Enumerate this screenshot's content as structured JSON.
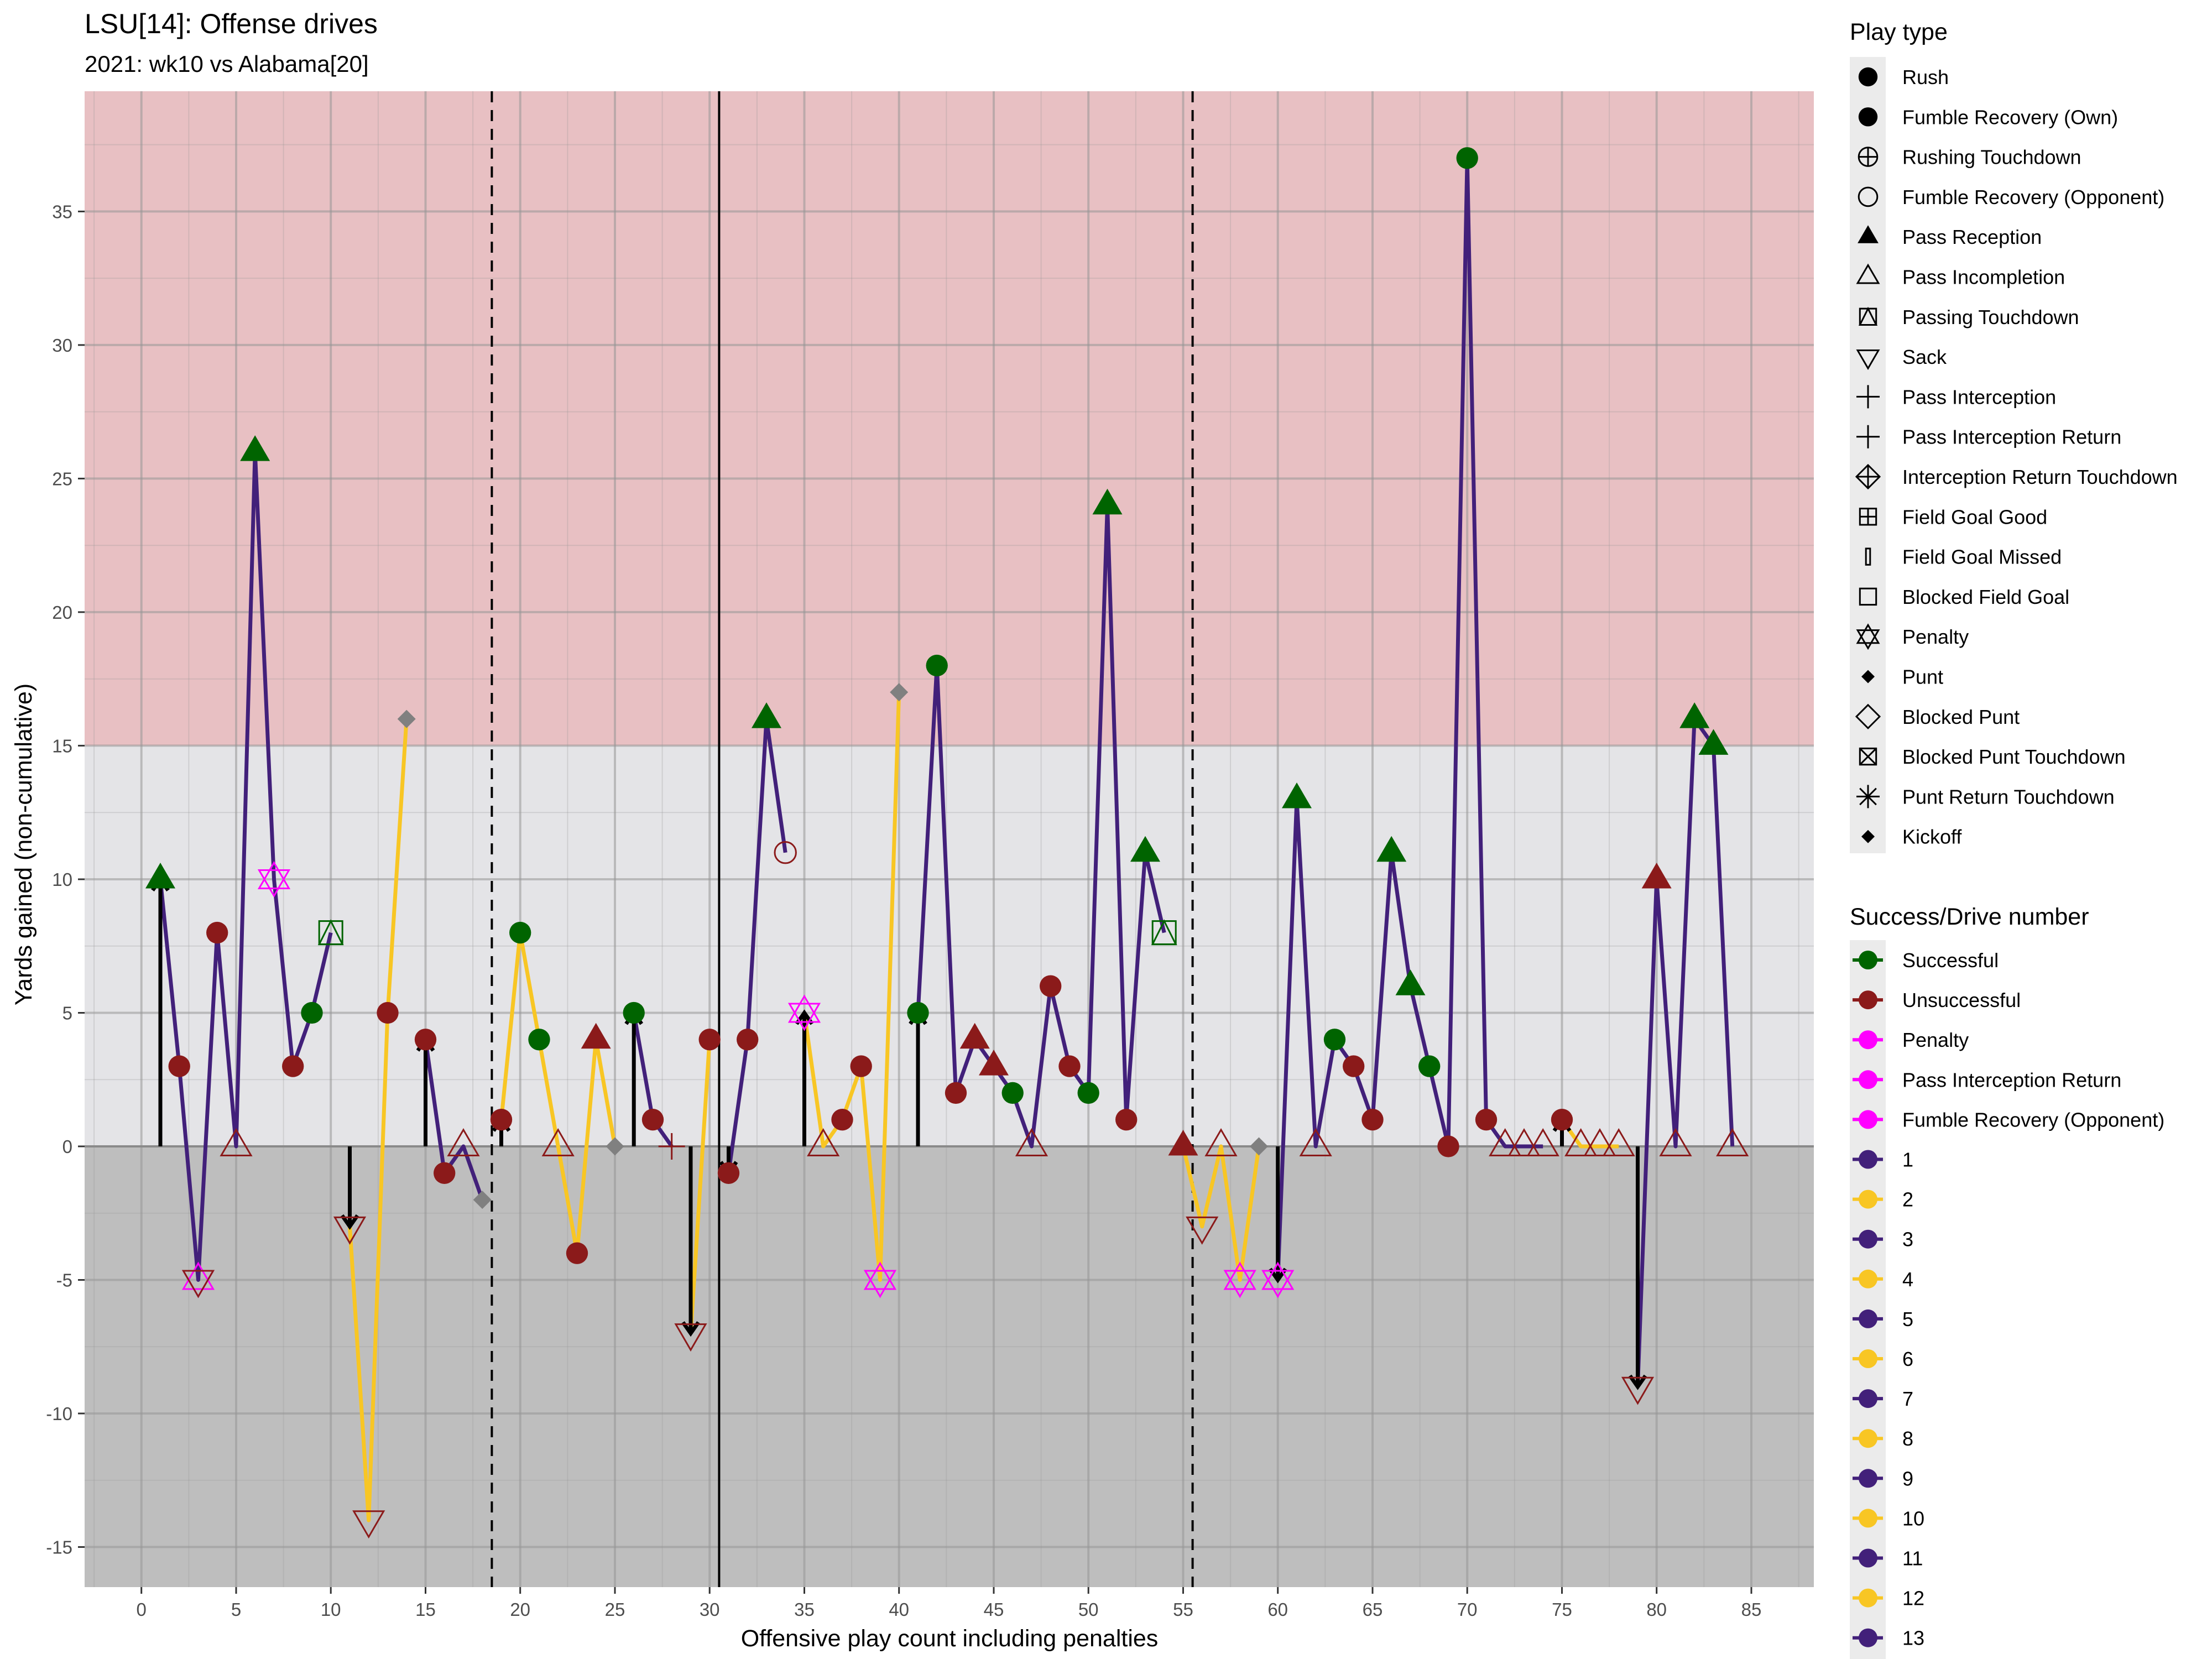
{
  "chart_data": {
    "type": "line",
    "title": "LSU[14]: Offense drives",
    "subtitle": "2021: wk10 vs Alabama[20]",
    "xlabel": "Offensive play count including penalties",
    "ylabel": "Yards gained (non-cumulative)",
    "xlim": [
      -3,
      88.3
    ],
    "ylim": [
      -16.5,
      39.5
    ],
    "x_ticks": [
      0,
      5,
      10,
      15,
      20,
      25,
      30,
      35,
      40,
      45,
      50,
      55,
      60,
      65,
      70,
      75,
      80,
      85
    ],
    "y_ticks": [
      -15,
      -10,
      -5,
      0,
      5,
      10,
      15,
      20,
      25,
      30,
      35
    ],
    "grid": true,
    "legend_position": "right",
    "background_bands": [
      {
        "from": 15,
        "to": 39.5,
        "color": "#e8c0c3"
      },
      {
        "from": 0,
        "to": 15,
        "color": "#e4e4e7"
      },
      {
        "from": -16.5,
        "to": 0,
        "color": "#bebebe"
      }
    ],
    "vlines": [
      {
        "x": 18.5,
        "style": "dashed"
      },
      {
        "x": 30.5,
        "style": "solid"
      },
      {
        "x": 55.5,
        "style": "dashed"
      }
    ],
    "zero_line": 0,
    "colors": {
      "successful": "#006400",
      "unsuccessful": "#8b1a1a",
      "penalty": "#ff00ff",
      "odd_drive": "#42207a",
      "even_drive": "#f8c624",
      "neutral": "#808080"
    },
    "drives": [
      {
        "drive": 1,
        "x": [
          1,
          2,
          3,
          4,
          5,
          6,
          7,
          8,
          9,
          10
        ],
        "y": [
          10,
          3,
          -5,
          8,
          0,
          26,
          10,
          3,
          5,
          8
        ]
      },
      {
        "drive": 2,
        "x": [
          11,
          12,
          13,
          14
        ],
        "y": [
          -3,
          -14,
          5,
          16
        ]
      },
      {
        "drive": 3,
        "x": [
          15,
          16,
          17,
          18
        ],
        "y": [
          4,
          -1,
          0,
          -2
        ]
      },
      {
        "drive": 4,
        "x": [
          19,
          20,
          21,
          22,
          23,
          24,
          25
        ],
        "y": [
          1,
          8,
          4,
          0,
          -4,
          4,
          0
        ]
      },
      {
        "drive": 5,
        "x": [
          26,
          27,
          28
        ],
        "y": [
          5,
          1,
          0
        ]
      },
      {
        "drive": 6,
        "x": [
          29,
          30
        ],
        "y": [
          -7,
          4
        ]
      },
      {
        "drive": 7,
        "x": [
          31,
          32,
          33,
          34
        ],
        "y": [
          -1,
          4,
          16,
          11
        ]
      },
      {
        "drive": 8,
        "x": [
          35,
          36,
          37,
          38,
          39,
          40
        ],
        "y": [
          5,
          0,
          1,
          3,
          -5,
          17
        ]
      },
      {
        "drive": 9,
        "x": [
          41,
          42,
          43,
          44,
          45,
          46,
          47,
          48,
          49,
          50,
          51,
          52,
          53,
          54
        ],
        "y": [
          5,
          18,
          2,
          4,
          3,
          2,
          0,
          6,
          3,
          2,
          24,
          1,
          11,
          8
        ]
      },
      {
        "drive": 10,
        "x": [
          55,
          56,
          57,
          58,
          59
        ],
        "y": [
          0,
          -3,
          0,
          -5,
          0
        ]
      },
      {
        "drive": 11,
        "x": [
          60,
          61,
          62,
          63,
          64,
          65,
          66,
          67,
          68,
          69,
          70,
          71,
          72,
          73,
          74
        ],
        "y": [
          -5,
          13,
          0,
          4,
          3,
          1,
          11,
          6,
          3,
          0,
          37,
          1,
          0,
          0,
          0
        ]
      },
      {
        "drive": 12,
        "x": [
          75,
          76,
          77,
          78
        ],
        "y": [
          1,
          0,
          0,
          0
        ]
      },
      {
        "drive": 13,
        "x": [
          79,
          80,
          81,
          82,
          83,
          84
        ],
        "y": [
          -9,
          10,
          0,
          16,
          15,
          0
        ]
      }
    ],
    "plays": [
      {
        "x": 1,
        "y": 10,
        "type": "Pass Reception",
        "result": "Successful"
      },
      {
        "x": 2,
        "y": 3,
        "type": "Rush",
        "result": "Unsuccessful"
      },
      {
        "x": 3,
        "y": -5,
        "type": "Penalty",
        "result": "Penalty"
      },
      {
        "x": 3,
        "y": -5,
        "type": "Sack",
        "result": "Unsuccessful"
      },
      {
        "x": 4,
        "y": 8,
        "type": "Rush",
        "result": "Unsuccessful"
      },
      {
        "x": 5,
        "y": 0,
        "type": "Pass Incompletion",
        "result": "Unsuccessful"
      },
      {
        "x": 6,
        "y": 26,
        "type": "Pass Reception",
        "result": "Successful"
      },
      {
        "x": 7,
        "y": 10,
        "type": "Penalty",
        "result": "Penalty"
      },
      {
        "x": 8,
        "y": 3,
        "type": "Rush",
        "result": "Unsuccessful"
      },
      {
        "x": 9,
        "y": 5,
        "type": "Rush",
        "result": "Successful"
      },
      {
        "x": 10,
        "y": 8,
        "type": "Passing Touchdown",
        "result": "Successful"
      },
      {
        "x": 11,
        "y": -3,
        "type": "Sack",
        "result": "Unsuccessful"
      },
      {
        "x": 12,
        "y": -14,
        "type": "Sack",
        "result": "Unsuccessful"
      },
      {
        "x": 13,
        "y": 5,
        "type": "Rush",
        "result": "Unsuccessful"
      },
      {
        "x": 14,
        "y": 16,
        "type": "Punt",
        "result": "Neutral"
      },
      {
        "x": 15,
        "y": 4,
        "type": "Rush",
        "result": "Unsuccessful"
      },
      {
        "x": 16,
        "y": -1,
        "type": "Rush",
        "result": "Unsuccessful"
      },
      {
        "x": 17,
        "y": 0,
        "type": "Pass Incompletion",
        "result": "Unsuccessful"
      },
      {
        "x": 18,
        "y": -2,
        "type": "Punt",
        "result": "Neutral"
      },
      {
        "x": 19,
        "y": 1,
        "type": "Rush",
        "result": "Unsuccessful"
      },
      {
        "x": 20,
        "y": 8,
        "type": "Rush",
        "result": "Successful"
      },
      {
        "x": 21,
        "y": 4,
        "type": "Rush",
        "result": "Successful"
      },
      {
        "x": 22,
        "y": 0,
        "type": "Pass Incompletion",
        "result": "Unsuccessful"
      },
      {
        "x": 23,
        "y": -4,
        "type": "Rush",
        "result": "Unsuccessful"
      },
      {
        "x": 24,
        "y": 4,
        "type": "Pass Reception",
        "result": "Unsuccessful"
      },
      {
        "x": 25,
        "y": 0,
        "type": "Punt",
        "result": "Neutral"
      },
      {
        "x": 26,
        "y": 5,
        "type": "Rush",
        "result": "Successful"
      },
      {
        "x": 27,
        "y": 1,
        "type": "Rush",
        "result": "Unsuccessful"
      },
      {
        "x": 28,
        "y": 0,
        "type": "Pass Interception",
        "result": "Unsuccessful"
      },
      {
        "x": 29,
        "y": -7,
        "type": "Sack",
        "result": "Unsuccessful"
      },
      {
        "x": 30,
        "y": 4,
        "type": "Rush",
        "result": "Unsuccessful"
      },
      {
        "x": 31,
        "y": -1,
        "type": "Rush",
        "result": "Unsuccessful"
      },
      {
        "x": 32,
        "y": 4,
        "type": "Rush",
        "result": "Unsuccessful"
      },
      {
        "x": 33,
        "y": 16,
        "type": "Pass Reception",
        "result": "Successful"
      },
      {
        "x": 34,
        "y": 11,
        "type": "Fumble Recovery (Opponent)",
        "result": "Unsuccessful"
      },
      {
        "x": 35,
        "y": 5,
        "type": "Penalty",
        "result": "Penalty"
      },
      {
        "x": 36,
        "y": 0,
        "type": "Pass Incompletion",
        "result": "Unsuccessful"
      },
      {
        "x": 37,
        "y": 1,
        "type": "Rush",
        "result": "Unsuccessful"
      },
      {
        "x": 38,
        "y": 3,
        "type": "Rush",
        "result": "Unsuccessful"
      },
      {
        "x": 39,
        "y": -5,
        "type": "Penalty",
        "result": "Penalty"
      },
      {
        "x": 40,
        "y": 17,
        "type": "Punt",
        "result": "Neutral"
      },
      {
        "x": 41,
        "y": 5,
        "type": "Rush",
        "result": "Successful"
      },
      {
        "x": 42,
        "y": 18,
        "type": "Rush",
        "result": "Successful"
      },
      {
        "x": 43,
        "y": 2,
        "type": "Rush",
        "result": "Unsuccessful"
      },
      {
        "x": 44,
        "y": 4,
        "type": "Pass Reception",
        "result": "Unsuccessful"
      },
      {
        "x": 45,
        "y": 3,
        "type": "Pass Reception",
        "result": "Unsuccessful"
      },
      {
        "x": 46,
        "y": 2,
        "type": "Rush",
        "result": "Successful"
      },
      {
        "x": 47,
        "y": 0,
        "type": "Pass Incompletion",
        "result": "Unsuccessful"
      },
      {
        "x": 48,
        "y": 6,
        "type": "Rush",
        "result": "Unsuccessful"
      },
      {
        "x": 49,
        "y": 3,
        "type": "Rush",
        "result": "Unsuccessful"
      },
      {
        "x": 50,
        "y": 2,
        "type": "Rush",
        "result": "Successful"
      },
      {
        "x": 51,
        "y": 24,
        "type": "Pass Reception",
        "result": "Successful"
      },
      {
        "x": 52,
        "y": 1,
        "type": "Rush",
        "result": "Unsuccessful"
      },
      {
        "x": 53,
        "y": 11,
        "type": "Pass Reception",
        "result": "Successful"
      },
      {
        "x": 54,
        "y": 8,
        "type": "Passing Touchdown",
        "result": "Successful"
      },
      {
        "x": 55,
        "y": 0,
        "type": "Pass Reception",
        "result": "Unsuccessful"
      },
      {
        "x": 56,
        "y": -3,
        "type": "Sack",
        "result": "Unsuccessful"
      },
      {
        "x": 57,
        "y": 0,
        "type": "Pass Incompletion",
        "result": "Unsuccessful"
      },
      {
        "x": 58,
        "y": -5,
        "type": "Penalty",
        "result": "Penalty"
      },
      {
        "x": 59,
        "y": 0,
        "type": "Punt",
        "result": "Neutral"
      },
      {
        "x": 60,
        "y": -5,
        "type": "Penalty",
        "result": "Penalty"
      },
      {
        "x": 61,
        "y": 13,
        "type": "Pass Reception",
        "result": "Successful"
      },
      {
        "x": 62,
        "y": 0,
        "type": "Pass Incompletion",
        "result": "Unsuccessful"
      },
      {
        "x": 63,
        "y": 4,
        "type": "Rush",
        "result": "Successful"
      },
      {
        "x": 64,
        "y": 3,
        "type": "Rush",
        "result": "Unsuccessful"
      },
      {
        "x": 65,
        "y": 1,
        "type": "Rush",
        "result": "Unsuccessful"
      },
      {
        "x": 66,
        "y": 11,
        "type": "Pass Reception",
        "result": "Successful"
      },
      {
        "x": 67,
        "y": 6,
        "type": "Pass Reception",
        "result": "Successful"
      },
      {
        "x": 68,
        "y": 3,
        "type": "Rush",
        "result": "Successful"
      },
      {
        "x": 69,
        "y": 0,
        "type": "Rush",
        "result": "Unsuccessful"
      },
      {
        "x": 70,
        "y": 37,
        "type": "Rush",
        "result": "Successful"
      },
      {
        "x": 71,
        "y": 1,
        "type": "Rush",
        "result": "Unsuccessful"
      },
      {
        "x": 72,
        "y": 0,
        "type": "Pass Incompletion",
        "result": "Unsuccessful"
      },
      {
        "x": 73,
        "y": 0,
        "type": "Pass Incompletion",
        "result": "Unsuccessful"
      },
      {
        "x": 74,
        "y": 0,
        "type": "Pass Incompletion",
        "result": "Unsuccessful"
      },
      {
        "x": 75,
        "y": 1,
        "type": "Rush",
        "result": "Unsuccessful"
      },
      {
        "x": 76,
        "y": 0,
        "type": "Pass Incompletion",
        "result": "Unsuccessful"
      },
      {
        "x": 77,
        "y": 0,
        "type": "Pass Incompletion",
        "result": "Unsuccessful"
      },
      {
        "x": 78,
        "y": 0,
        "type": "Pass Incompletion",
        "result": "Unsuccessful"
      },
      {
        "x": 79,
        "y": -9,
        "type": "Sack",
        "result": "Unsuccessful"
      },
      {
        "x": 80,
        "y": 10,
        "type": "Pass Reception",
        "result": "Unsuccessful"
      },
      {
        "x": 81,
        "y": 0,
        "type": "Pass Incompletion",
        "result": "Unsuccessful"
      },
      {
        "x": 82,
        "y": 16,
        "type": "Pass Reception",
        "result": "Successful"
      },
      {
        "x": 83,
        "y": 15,
        "type": "Pass Reception",
        "result": "Successful"
      },
      {
        "x": 84,
        "y": 0,
        "type": "Pass Incompletion",
        "result": "Unsuccessful"
      }
    ],
    "drive_start_arrows": [
      {
        "x": 1,
        "y": 10
      },
      {
        "x": 11,
        "y": -3
      },
      {
        "x": 15,
        "y": 4
      },
      {
        "x": 19,
        "y": 1
      },
      {
        "x": 26,
        "y": 5
      },
      {
        "x": 29,
        "y": -7
      },
      {
        "x": 31,
        "y": -1
      },
      {
        "x": 35,
        "y": 5
      },
      {
        "x": 41,
        "y": 5
      },
      {
        "x": 60,
        "y": -5
      },
      {
        "x": 75,
        "y": 1
      },
      {
        "x": 79,
        "y": -9
      }
    ],
    "legend_play_type": {
      "title": "Play type",
      "items": [
        {
          "label": "Rush",
          "symbol": "filled-circle"
        },
        {
          "label": "Fumble Recovery (Own)",
          "symbol": "filled-circle"
        },
        {
          "label": "Rushing Touchdown",
          "symbol": "circle-plus"
        },
        {
          "label": "Fumble Recovery (Opponent)",
          "symbol": "open-circle"
        },
        {
          "label": "Pass Reception",
          "symbol": "filled-triangle"
        },
        {
          "label": "Pass Incompletion",
          "symbol": "open-triangle"
        },
        {
          "label": "Passing Touchdown",
          "symbol": "square-triangle"
        },
        {
          "label": "Sack",
          "symbol": "open-triangle-down"
        },
        {
          "label": "Pass Interception",
          "symbol": "plus"
        },
        {
          "label": "Pass Interception Return",
          "symbol": "plus"
        },
        {
          "label": "Interception Return Touchdown",
          "symbol": "diamond-plus"
        },
        {
          "label": "Field Goal Good",
          "symbol": "square-plus"
        },
        {
          "label": "Field Goal Missed",
          "symbol": "thin-rect"
        },
        {
          "label": "Blocked Field Goal",
          "symbol": "open-square"
        },
        {
          "label": "Penalty",
          "symbol": "star-of-david"
        },
        {
          "label": "Punt",
          "symbol": "filled-diamond"
        },
        {
          "label": "Blocked Punt",
          "symbol": "open-diamond"
        },
        {
          "label": "Blocked Punt Touchdown",
          "symbol": "square-x"
        },
        {
          "label": "Punt Return Touchdown",
          "symbol": "asterisk"
        },
        {
          "label": "Kickoff",
          "symbol": "filled-diamond"
        }
      ]
    },
    "legend_success": {
      "title": "Success/Drive number",
      "items": [
        {
          "label": "Successful",
          "color": "#006400"
        },
        {
          "label": "Unsuccessful",
          "color": "#8b1a1a"
        },
        {
          "label": "Penalty",
          "color": "#ff00ff"
        },
        {
          "label": "Pass Interception Return",
          "color": "#ff00ff"
        },
        {
          "label": "Fumble Recovery (Opponent)",
          "color": "#ff00ff"
        },
        {
          "label": "1",
          "color": "#42207a"
        },
        {
          "label": "2",
          "color": "#f8c624"
        },
        {
          "label": "3",
          "color": "#42207a"
        },
        {
          "label": "4",
          "color": "#f8c624"
        },
        {
          "label": "5",
          "color": "#42207a"
        },
        {
          "label": "6",
          "color": "#f8c624"
        },
        {
          "label": "7",
          "color": "#42207a"
        },
        {
          "label": "8",
          "color": "#f8c624"
        },
        {
          "label": "9",
          "color": "#42207a"
        },
        {
          "label": "10",
          "color": "#f8c624"
        },
        {
          "label": "11",
          "color": "#42207a"
        },
        {
          "label": "12",
          "color": "#f8c624"
        },
        {
          "label": "13",
          "color": "#42207a"
        }
      ]
    }
  }
}
